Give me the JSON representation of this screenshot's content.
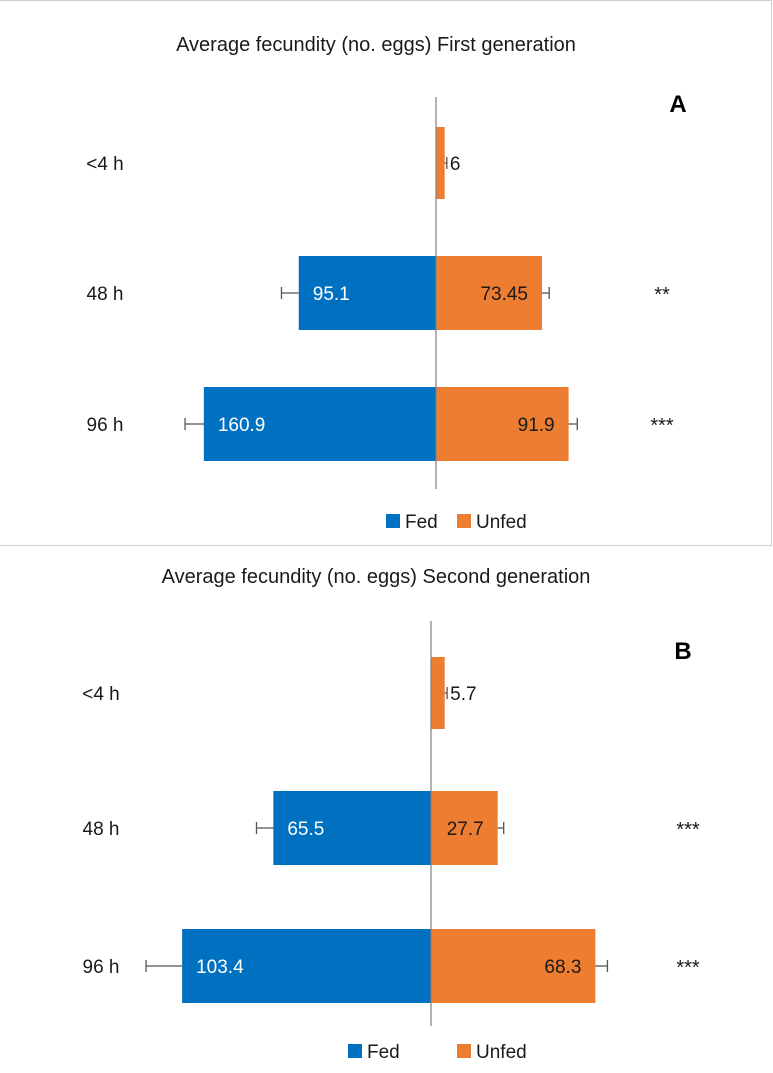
{
  "legend": {
    "fed": "Fed",
    "unfed": "Unfed"
  },
  "colors": {
    "fed": "#0070C0",
    "unfed": "#ED7D31",
    "axis": "#808080"
  },
  "chart_data": [
    {
      "type": "bar",
      "title": "Average fecundity (no. eggs) First generation",
      "panel_letter": "A",
      "categories": [
        "<4 h",
        "48 h",
        "96 h"
      ],
      "series": [
        {
          "name": "Fed",
          "values": [
            null,
            95.1,
            160.9
          ],
          "labels": [
            "",
            "95.1",
            "160.9"
          ],
          "error": [
            null,
            12,
            13
          ]
        },
        {
          "name": "Unfed",
          "values": [
            6,
            73.45,
            91.9
          ],
          "labels": [
            "6",
            "73.45",
            "91.9"
          ],
          "error": [
            1.5,
            5,
            6
          ]
        }
      ],
      "significance": [
        "",
        "**",
        "***"
      ],
      "xlabel": "",
      "ylabel": ""
    },
    {
      "type": "bar",
      "title": "Average fecundity (no. eggs) Second generation",
      "panel_letter": "B",
      "categories": [
        "<4 h",
        "48 h",
        "96 h"
      ],
      "series": [
        {
          "name": "Fed",
          "values": [
            null,
            65.5,
            103.4
          ],
          "labels": [
            "",
            "65.5",
            "103.4"
          ],
          "error": [
            null,
            7,
            15
          ]
        },
        {
          "name": "Unfed",
          "values": [
            5.7,
            27.7,
            68.3
          ],
          "labels": [
            "5.7",
            "27.7",
            "68.3"
          ],
          "error": [
            1,
            2.5,
            5
          ]
        }
      ],
      "significance": [
        "",
        "***",
        "***"
      ],
      "xlabel": "",
      "ylabel": ""
    }
  ]
}
